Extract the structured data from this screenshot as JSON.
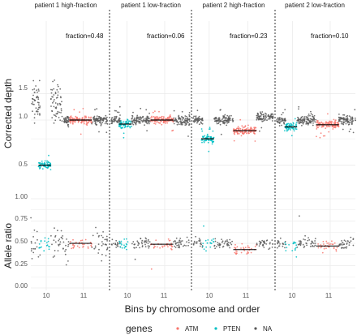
{
  "chart_data": {
    "type": "scatter",
    "xlabel": "Bins by chromosome and order",
    "panel_titles": [
      "patient 1 high-fraction",
      "patient 1 low-fraction",
      "patient 2 high-fraction",
      "patient 2 low-fraction"
    ],
    "fraction_labels": [
      "fraction=0.48",
      "fraction=0.06",
      "fraction=0.23",
      "fraction=0.10"
    ],
    "x_tick_labels": [
      "10",
      "11"
    ],
    "legend": {
      "title": "genes",
      "position": "bottom",
      "entries": [
        {
          "name": "ATM",
          "color": "#F8766D"
        },
        {
          "name": "PTEN",
          "color": "#00BFC4"
        },
        {
          "name": "NA",
          "color": "#595959"
        }
      ]
    },
    "grid": true,
    "facet_rows": [
      {
        "ylabel": "Corrected depth",
        "scale": "log",
        "yticks": [
          0.5,
          1.0,
          1.5
        ],
        "ytick_labels": [
          "0.5",
          "1.0",
          "1.5"
        ],
        "ylim": [
          0.35,
          2.0
        ],
        "segment_levels": [
          {
            "NA_10a": 1.0,
            "PTEN": 0.5,
            "NA_10b": 1.0,
            "NA_10c": 1.0,
            "ATM": 1.0,
            "NA_11b": 1.0
          },
          {
            "NA_10a": 1.0,
            "PTEN": 0.94,
            "NA_10b": 1.0,
            "NA_10c": 1.0,
            "ATM": 1.0,
            "NA_11b": 1.0
          },
          {
            "NA_10a": 1.0,
            "PTEN": 0.75,
            "NA_10b": 1.0,
            "NA_10c": 1.0,
            "ATM": 0.85,
            "NA_11b": 1.05
          },
          {
            "NA_10a": 1.0,
            "PTEN": 0.9,
            "NA_10b": 1.0,
            "NA_10c": 1.0,
            "ATM": 0.93,
            "NA_11b": 1.0
          }
        ]
      },
      {
        "ylabel": "Allele ratio",
        "scale": "linear",
        "yticks": [
          0,
          0.25,
          0.5,
          0.75,
          1.0
        ],
        "ytick_labels": [
          "0.00",
          "0.25",
          "0.50",
          "0.75",
          "1.00"
        ],
        "ylim": [
          -0.03,
          1.05
        ],
        "segment_levels": [
          {
            "NA": 0.5,
            "PTEN": 0.48,
            "ATM": 0.5
          },
          {
            "NA": 0.5,
            "PTEN": 0.49,
            "ATM": 0.49
          },
          {
            "NA": 0.5,
            "PTEN": 0.49,
            "ATM": 0.43
          },
          {
            "NA": 0.5,
            "PTEN": 0.49,
            "ATM": 0.47
          }
        ]
      }
    ],
    "colors": {
      "ATM": "#F8766D",
      "PTEN": "#00BFC4",
      "NA": "#595959",
      "grid": "#EBEBEB",
      "separator": "#000000"
    }
  }
}
